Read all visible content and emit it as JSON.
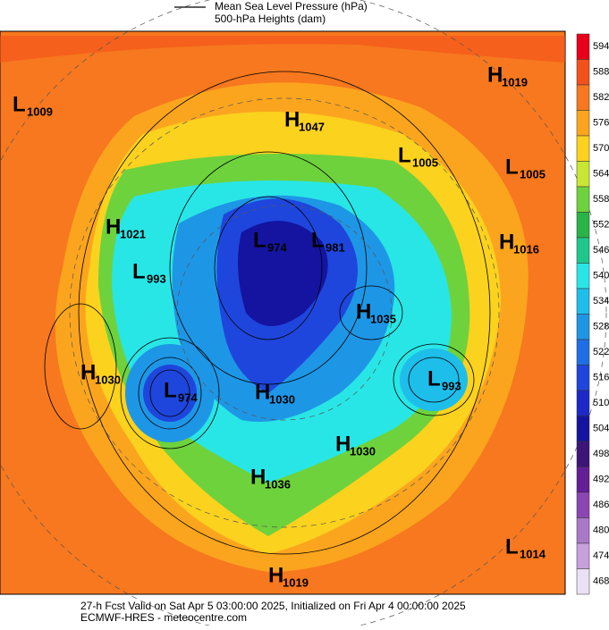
{
  "legend": [
    "Mean Sea Level Pressure (hPa)",
    "500-hPa Heights (dam)"
  ],
  "centers": [
    {
      "type": "L",
      "value": 1009
    },
    {
      "type": "H",
      "value": 1019
    },
    {
      "type": "H",
      "value": 1047
    },
    {
      "type": "L",
      "value": 1005
    },
    {
      "type": "L",
      "value": 1005
    },
    {
      "type": "H",
      "value": 1021
    },
    {
      "type": "L",
      "value": 974
    },
    {
      "type": "L",
      "value": 981
    },
    {
      "type": "H",
      "value": 1016
    },
    {
      "type": "L",
      "value": 993
    },
    {
      "type": "H",
      "value": 1035
    },
    {
      "type": "H",
      "value": 1030
    },
    {
      "type": "L",
      "value": 974
    },
    {
      "type": "H",
      "value": 1030
    },
    {
      "type": "L",
      "value": 993
    },
    {
      "type": "H",
      "value": 1030
    },
    {
      "type": "H",
      "value": 1036
    },
    {
      "type": "L",
      "value": 1014
    },
    {
      "type": "H",
      "value": 1019
    }
  ],
  "colorbar": {
    "levels": [
      594,
      588,
      582,
      576,
      570,
      564,
      558,
      552,
      546,
      540,
      534,
      528,
      522,
      516,
      510,
      504,
      498,
      492,
      486,
      480,
      474,
      468
    ],
    "colors": [
      "#e8001a",
      "#f4501a",
      "#f7781e",
      "#fba51e",
      "#fbd21e",
      "#c8e632",
      "#6ed23c",
      "#28b446",
      "#1ec88c",
      "#28e6e6",
      "#1ebeeb",
      "#1e96e6",
      "#1e6ee6",
      "#1e46dc",
      "#1e28c8",
      "#1414a0",
      "#3c147a",
      "#641e96",
      "#8c46b4",
      "#aa78c8",
      "#c8a0dc",
      "#ece0f4"
    ]
  },
  "footer": [
    "27-h Fcst Valid on Sat Apr  5 03:00:00 2025, Initialized on Fri Apr  4 00:00:00 2025",
    "ECMWF-HRES  - meteocentre.com"
  ]
}
